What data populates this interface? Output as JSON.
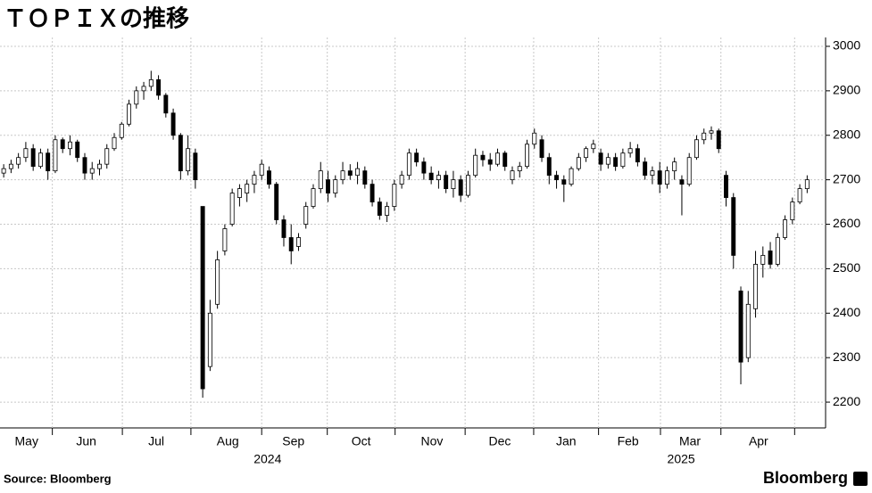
{
  "chart_data": {
    "type": "candlestick",
    "title": "ＴＯＰＩＸの推移",
    "source": "Source: Bloomberg",
    "logo": "Bloomberg",
    "up_color": "#ffffff",
    "down_color": "#000000",
    "ylim": [
      2142,
      3020
    ],
    "yticks": [
      2200,
      2300,
      2400,
      2500,
      2600,
      2700,
      2800,
      2900,
      3000
    ],
    "xlim": [
      -0.5,
      111.5
    ],
    "xgrid": [
      6.6,
      16.1,
      25.4,
      35,
      43.9,
      53.1,
      62.6,
      71.9,
      80.7,
      89.1,
      97.3,
      107.3
    ],
    "xticks": [
      {
        "value": 3.1,
        "label": "May"
      },
      {
        "value": 11.2,
        "label": "Jun"
      },
      {
        "value": 20.7,
        "label": "Jul"
      },
      {
        "value": 30.4,
        "label": "Aug"
      },
      {
        "value": 39.3,
        "label": "Sep"
      },
      {
        "value": 48.5,
        "label": "Oct"
      },
      {
        "value": 58.1,
        "label": "Nov"
      },
      {
        "value": 67.3,
        "label": "Dec"
      },
      {
        "value": 76.3,
        "label": "Jan"
      },
      {
        "value": 84.7,
        "label": "Feb"
      },
      {
        "value": 93.1,
        "label": "Mar"
      },
      {
        "value": 102.4,
        "label": "Apr"
      }
    ],
    "year_labels": [
      {
        "value": 35.8,
        "label": "2024"
      },
      {
        "value": 91.9,
        "label": "2025"
      }
    ],
    "grid": true,
    "open": [
      2715,
      2725,
      2735,
      2750,
      2770,
      2730,
      2760,
      2720,
      2790,
      2770,
      2785,
      2750,
      2715,
      2725,
      2735,
      2770,
      2795,
      2825,
      2870,
      2900,
      2910,
      2925,
      2890,
      2850,
      2800,
      2720,
      2760,
      2640,
      2280,
      2420,
      2540,
      2600,
      2660,
      2670,
      2690,
      2710,
      2720,
      2690,
      2610,
      2570,
      2550,
      2600,
      2640,
      2680,
      2700,
      2670,
      2700,
      2720,
      2710,
      2720,
      2690,
      2650,
      2620,
      2640,
      2690,
      2710,
      2760,
      2740,
      2715,
      2700,
      2710,
      2680,
      2700,
      2665,
      2710,
      2755,
      2745,
      2735,
      2760,
      2700,
      2720,
      2730,
      2780,
      2790,
      2750,
      2710,
      2700,
      2690,
      2725,
      2750,
      2770,
      2760,
      2735,
      2750,
      2730,
      2760,
      2770,
      2740,
      2710,
      2720,
      2690,
      2720,
      2700,
      2690,
      2750,
      2790,
      2805,
      2810,
      2710,
      2660,
      2450,
      2300,
      2410,
      2510,
      2540,
      2510,
      2570,
      2610,
      2650,
      2680
    ],
    "high": [
      2735,
      2745,
      2760,
      2785,
      2780,
      2770,
      2770,
      2800,
      2795,
      2800,
      2790,
      2760,
      2740,
      2745,
      2780,
      2805,
      2830,
      2880,
      2910,
      2920,
      2945,
      2935,
      2895,
      2860,
      2805,
      2800,
      2770,
      2640,
      2430,
      2540,
      2600,
      2680,
      2690,
      2700,
      2720,
      2745,
      2730,
      2695,
      2620,
      2600,
      2580,
      2650,
      2690,
      2740,
      2720,
      2710,
      2740,
      2735,
      2740,
      2730,
      2700,
      2660,
      2650,
      2700,
      2720,
      2770,
      2770,
      2750,
      2730,
      2720,
      2720,
      2720,
      2710,
      2720,
      2770,
      2765,
      2760,
      2770,
      2765,
      2730,
      2740,
      2790,
      2815,
      2800,
      2760,
      2720,
      2710,
      2730,
      2760,
      2775,
      2790,
      2770,
      2760,
      2760,
      2770,
      2785,
      2780,
      2750,
      2730,
      2740,
      2730,
      2750,
      2710,
      2760,
      2800,
      2815,
      2820,
      2815,
      2720,
      2670,
      2460,
      2450,
      2540,
      2550,
      2560,
      2580,
      2620,
      2660,
      2690,
      2710
    ],
    "low": [
      2705,
      2715,
      2725,
      2740,
      2720,
      2725,
      2700,
      2715,
      2760,
      2755,
      2740,
      2700,
      2700,
      2710,
      2725,
      2765,
      2790,
      2820,
      2860,
      2880,
      2900,
      2880,
      2840,
      2790,
      2700,
      2710,
      2680,
      2210,
      2270,
      2410,
      2530,
      2595,
      2640,
      2650,
      2670,
      2700,
      2680,
      2600,
      2550,
      2510,
      2540,
      2590,
      2635,
      2670,
      2650,
      2660,
      2690,
      2700,
      2690,
      2680,
      2640,
      2610,
      2605,
      2630,
      2680,
      2700,
      2730,
      2700,
      2690,
      2680,
      2670,
      2660,
      2650,
      2660,
      2705,
      2730,
      2720,
      2730,
      2720,
      2690,
      2705,
      2725,
      2770,
      2740,
      2690,
      2680,
      2650,
      2685,
      2720,
      2740,
      2760,
      2720,
      2725,
      2720,
      2725,
      2750,
      2730,
      2700,
      2690,
      2670,
      2680,
      2700,
      2620,
      2685,
      2745,
      2780,
      2790,
      2760,
      2640,
      2500,
      2240,
      2290,
      2390,
      2480,
      2500,
      2505,
      2565,
      2600,
      2645,
      2670
    ],
    "close": [
      2725,
      2735,
      2750,
      2770,
      2730,
      2760,
      2720,
      2790,
      2770,
      2785,
      2750,
      2715,
      2725,
      2735,
      2770,
      2795,
      2825,
      2870,
      2900,
      2910,
      2925,
      2890,
      2850,
      2800,
      2720,
      2770,
      2700,
      2230,
      2400,
      2520,
      2590,
      2670,
      2680,
      2690,
      2710,
      2735,
      2690,
      2610,
      2570,
      2540,
      2570,
      2640,
      2680,
      2720,
      2670,
      2700,
      2720,
      2710,
      2725,
      2690,
      2650,
      2620,
      2640,
      2690,
      2710,
      2760,
      2740,
      2715,
      2700,
      2710,
      2680,
      2700,
      2665,
      2710,
      2755,
      2745,
      2735,
      2760,
      2730,
      2720,
      2730,
      2780,
      2805,
      2750,
      2710,
      2700,
      2690,
      2725,
      2750,
      2770,
      2780,
      2735,
      2750,
      2730,
      2760,
      2770,
      2740,
      2710,
      2720,
      2690,
      2720,
      2740,
      2690,
      2750,
      2790,
      2805,
      2810,
      2770,
      2660,
      2530,
      2290,
      2420,
      2510,
      2530,
      2510,
      2570,
      2610,
      2650,
      2680,
      2700
    ]
  }
}
